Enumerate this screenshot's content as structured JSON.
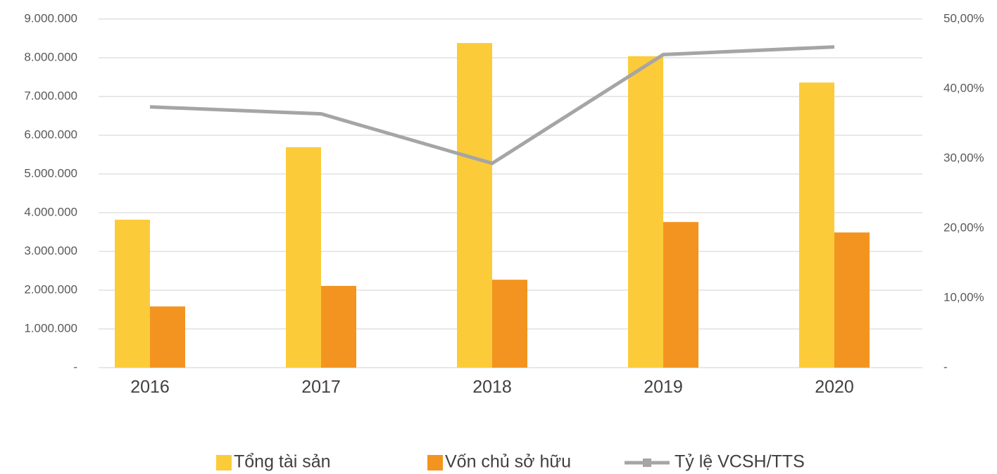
{
  "chart_data": {
    "type": "bar",
    "categories": [
      "2016",
      "2017",
      "2018",
      "2019",
      "2020"
    ],
    "series": [
      {
        "name": "Tổng tài sản",
        "color": "#FCCB3A",
        "values": [
          3820000,
          5690000,
          8380000,
          8040000,
          7360000
        ]
      },
      {
        "name": "Vốn chủ sở hữu",
        "color": "#F39420",
        "values": [
          1580000,
          2110000,
          2270000,
          3760000,
          3490000
        ]
      },
      {
        "name": "Tỷ lệ VCSH/TTS",
        "type": "line",
        "axis": "y2",
        "color": "#A5A5A5",
        "values": [
          37.4,
          36.4,
          29.3,
          44.9,
          46.0
        ]
      }
    ],
    "ylim": [
      0,
      9000000
    ],
    "yticks": [
      {
        "value": 0,
        "label": "-"
      },
      {
        "value": 1000000,
        "label": "1.000.000"
      },
      {
        "value": 2000000,
        "label": "2.000.000"
      },
      {
        "value": 3000000,
        "label": "3.000.000"
      },
      {
        "value": 4000000,
        "label": "4.000.000"
      },
      {
        "value": 5000000,
        "label": "5.000.000"
      },
      {
        "value": 6000000,
        "label": "6.000.000"
      },
      {
        "value": 7000000,
        "label": "7.000.000"
      },
      {
        "value": 8000000,
        "label": "8.000.000"
      },
      {
        "value": 9000000,
        "label": "9.000.000"
      }
    ],
    "y2lim": [
      0,
      50
    ],
    "y2ticks": [
      {
        "value": 0,
        "label": "-"
      },
      {
        "value": 10,
        "label": "10,00%"
      },
      {
        "value": 20,
        "label": "20,00%"
      },
      {
        "value": 30,
        "label": "30,00%"
      },
      {
        "value": 40,
        "label": "40,00%"
      },
      {
        "value": 50,
        "label": "50,00%"
      }
    ],
    "grid": true,
    "legend": "bottom"
  }
}
